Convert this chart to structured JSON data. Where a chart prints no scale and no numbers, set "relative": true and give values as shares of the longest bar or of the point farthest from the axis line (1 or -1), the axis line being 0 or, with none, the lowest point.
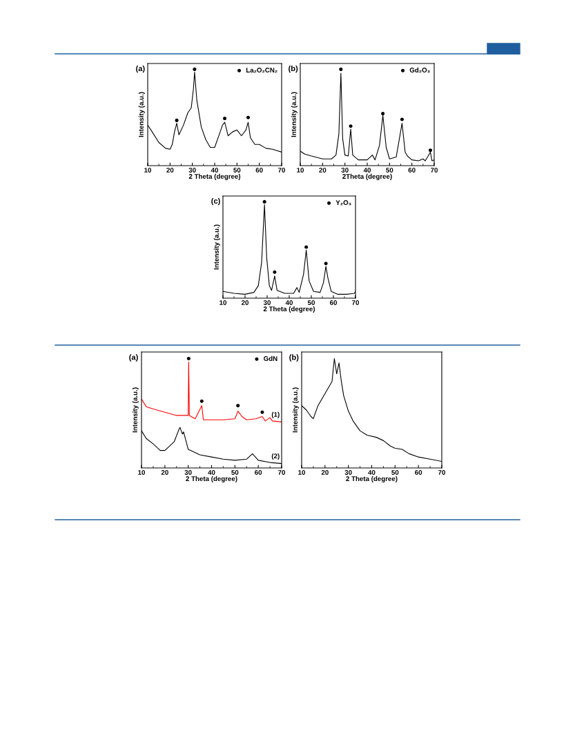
{
  "chart_data": [
    {
      "type": "line",
      "title": "(a)",
      "xlabel": "2 Theta (degree)",
      "ylabel": "Intensity (a.u.)",
      "relative": true,
      "xlim": [
        10,
        70
      ],
      "xticks": [
        10,
        20,
        30,
        40,
        50,
        60,
        70
      ],
      "legend": "top right",
      "grid": false,
      "series": [
        {
          "color": "#000000",
          "x": [
            10,
            12,
            15,
            18,
            20,
            21,
            22,
            23,
            24,
            26,
            28,
            29.5,
            30.5,
            31,
            32,
            34,
            36,
            38,
            40,
            42,
            43.5,
            44.5,
            46,
            48,
            50,
            52,
            54,
            55,
            56,
            58,
            60,
            63,
            66,
            70
          ],
          "values": [
            0.42,
            0.35,
            0.24,
            0.18,
            0.17,
            0.22,
            0.35,
            0.44,
            0.32,
            0.42,
            0.55,
            0.6,
            0.8,
            0.97,
            0.68,
            0.4,
            0.27,
            0.19,
            0.19,
            0.32,
            0.42,
            0.45,
            0.31,
            0.35,
            0.37,
            0.31,
            0.37,
            0.45,
            0.29,
            0.22,
            0.22,
            0.18,
            0.17,
            0.14
          ]
        },
        {
          "type": "scatter",
          "name": "La₂O₂CN₂",
          "color": "#000000",
          "marker": "circle",
          "x": [
            23,
            31,
            44.5,
            55
          ],
          "values": [
            0.47,
            1,
            0.49,
            0.5
          ]
        }
      ]
    },
    {
      "type": "line",
      "title": "(b)",
      "xlabel": "2Theta (degree)",
      "ylabel": "Intensity (a.u.)",
      "relative": true,
      "xlim": [
        10,
        70
      ],
      "xticks": [
        10,
        20,
        30,
        40,
        50,
        60,
        70
      ],
      "legend": "top right",
      "grid": false,
      "series": [
        {
          "color": "#000000",
          "x": [
            10,
            12,
            15,
            20,
            24,
            26,
            27.3,
            28.2,
            29,
            30,
            31.5,
            32.6,
            33.5,
            36,
            40,
            42.3,
            43.5,
            45.5,
            47,
            48.5,
            50,
            53,
            55.6,
            57,
            58,
            60,
            63,
            65,
            66,
            68.3,
            69,
            70
          ],
          "values": [
            0.15,
            0.12,
            0.1,
            0.07,
            0.07,
            0.11,
            0.33,
            0.96,
            0.28,
            0.11,
            0.1,
            0.38,
            0.11,
            0.06,
            0.06,
            0.11,
            0.06,
            0.21,
            0.52,
            0.19,
            0.07,
            0.09,
            0.44,
            0.14,
            0.1,
            0.06,
            0.05,
            0.07,
            0.05,
            0.14,
            0.05,
            0.06
          ]
        },
        {
          "type": "scatter",
          "name": "Gd₂O₃",
          "color": "#000000",
          "marker": "circle",
          "x": [
            28.2,
            32.6,
            47,
            55.6,
            68.3
          ],
          "values": [
            1,
            0.41,
            0.54,
            0.48,
            0.16
          ]
        }
      ]
    },
    {
      "type": "line",
      "title": "(c)",
      "xlabel": "2 Theta (degree)",
      "ylabel": "Intensity (a.u.)",
      "relative": true,
      "xlim": [
        10,
        70
      ],
      "xticks": [
        10,
        20,
        30,
        40,
        50,
        60,
        70
      ],
      "legend": "top right",
      "grid": false,
      "series": [
        {
          "color": "#000000",
          "x": [
            10,
            15,
            20,
            24,
            26,
            27.5,
            28.8,
            29.8,
            31,
            32,
            33.4,
            34.5,
            38,
            42,
            43.5,
            44.5,
            46.5,
            47.7,
            49,
            51,
            54,
            55.5,
            56.6,
            57.5,
            59,
            62,
            66,
            69.5,
            70
          ],
          "values": [
            0.07,
            0.05,
            0.04,
            0.06,
            0.13,
            0.37,
            0.97,
            0.42,
            0.13,
            0.08,
            0.23,
            0.08,
            0.05,
            0.05,
            0.11,
            0.06,
            0.25,
            0.5,
            0.18,
            0.07,
            0.06,
            0.16,
            0.33,
            0.21,
            0.07,
            0.04,
            0.04,
            0.05,
            0.07
          ]
        },
        {
          "type": "scatter",
          "name": "Y₂O₃",
          "color": "#000000",
          "marker": "circle",
          "x": [
            28.8,
            33.4,
            47.7,
            56.6
          ],
          "values": [
            1,
            0.27,
            0.53,
            0.36
          ]
        }
      ]
    },
    {
      "type": "line",
      "title": "(a)",
      "xlabel": "2 Theta (degree)",
      "ylabel": "Intensity (a.u.)",
      "relative": true,
      "xlim": [
        10,
        70
      ],
      "xticks": [
        10,
        20,
        30,
        40,
        50,
        60,
        70
      ],
      "legend": "top right",
      "grid": false,
      "series": [
        {
          "name": "(1)",
          "color": "#ff0000",
          "x": [
            10,
            12,
            15,
            20,
            25,
            29,
            30,
            30.2,
            30.5,
            33,
            35.8,
            36.5,
            40,
            45,
            50,
            51.3,
            53,
            55,
            59,
            61.7,
            63,
            65,
            66,
            70
          ],
          "values": [
            0.63,
            0.56,
            0.54,
            0.51,
            0.48,
            0.48,
            0.48,
            0.97,
            0.48,
            0.45,
            0.57,
            0.44,
            0.44,
            0.44,
            0.45,
            0.52,
            0.47,
            0.44,
            0.45,
            0.47,
            0.43,
            0.46,
            0.43,
            0.42
          ]
        },
        {
          "name": "(2)",
          "color": "#000000",
          "x": [
            10,
            12,
            15,
            18,
            20,
            22,
            24,
            26,
            26.5,
            27.5,
            28,
            30,
            35,
            40,
            45,
            50,
            55,
            57.5,
            60,
            65,
            70
          ],
          "values": [
            0.34,
            0.27,
            0.22,
            0.16,
            0.16,
            0.2,
            0.24,
            0.35,
            0.37,
            0.31,
            0.33,
            0.17,
            0.12,
            0.1,
            0.08,
            0.07,
            0.08,
            0.13,
            0.07,
            0.05,
            0.04
          ]
        },
        {
          "type": "scatter",
          "name": "GdN",
          "color": "#000000",
          "marker": "circle",
          "x": [
            30.2,
            35.8,
            51.3,
            61.7
          ],
          "values": [
            1,
            0.61,
            0.57,
            0.51
          ]
        }
      ]
    },
    {
      "type": "line",
      "title": "(b)",
      "xlabel": "2 Theta (degree)",
      "ylabel": "Intensity (a.u.)",
      "relative": true,
      "xlim": [
        10,
        70
      ],
      "xticks": [
        10,
        20,
        30,
        40,
        50,
        60,
        70
      ],
      "grid": false,
      "series": [
        {
          "color": "#000000",
          "x": [
            10,
            12,
            14,
            15,
            17,
            20,
            23,
            24,
            25,
            26,
            27,
            28,
            30,
            32,
            35,
            38,
            42,
            45,
            48,
            50,
            53,
            56,
            60,
            65,
            70
          ],
          "values": [
            0.57,
            0.53,
            0.47,
            0.45,
            0.57,
            0.68,
            0.79,
            1,
            0.86,
            0.96,
            0.79,
            0.66,
            0.52,
            0.43,
            0.34,
            0.3,
            0.28,
            0.25,
            0.2,
            0.18,
            0.17,
            0.13,
            0.1,
            0.08,
            0.06
          ]
        }
      ]
    }
  ]
}
